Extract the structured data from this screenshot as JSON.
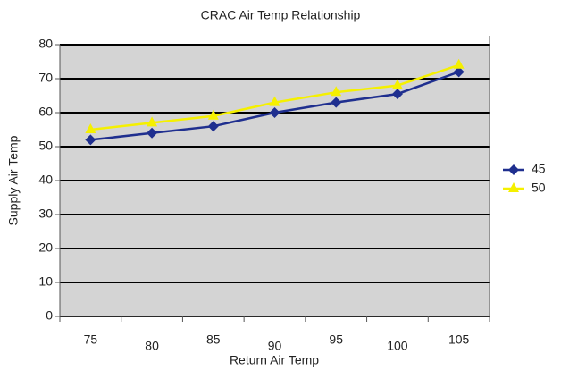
{
  "chart_data": {
    "type": "line",
    "title": "CRAC Air Temp Relationship",
    "x_label": "Return Air Temp",
    "y_label": "Supply Air Temp",
    "categories": [
      "75",
      "80",
      "85",
      "90",
      "95",
      "100",
      "105"
    ],
    "series": [
      {
        "name": "45",
        "color": "#1f2f8f",
        "marker": "diamond",
        "values": [
          52,
          54,
          56,
          60,
          63,
          65.5,
          72
        ]
      },
      {
        "name": "50",
        "color": "#f5f000",
        "marker": "triangle",
        "values": [
          55,
          57,
          59,
          63,
          66,
          68,
          74
        ]
      }
    ],
    "ylim": [
      0,
      80
    ],
    "yticks": [
      0,
      10,
      20,
      30,
      40,
      50,
      60,
      70,
      80
    ],
    "grid": true,
    "legend": "right"
  }
}
